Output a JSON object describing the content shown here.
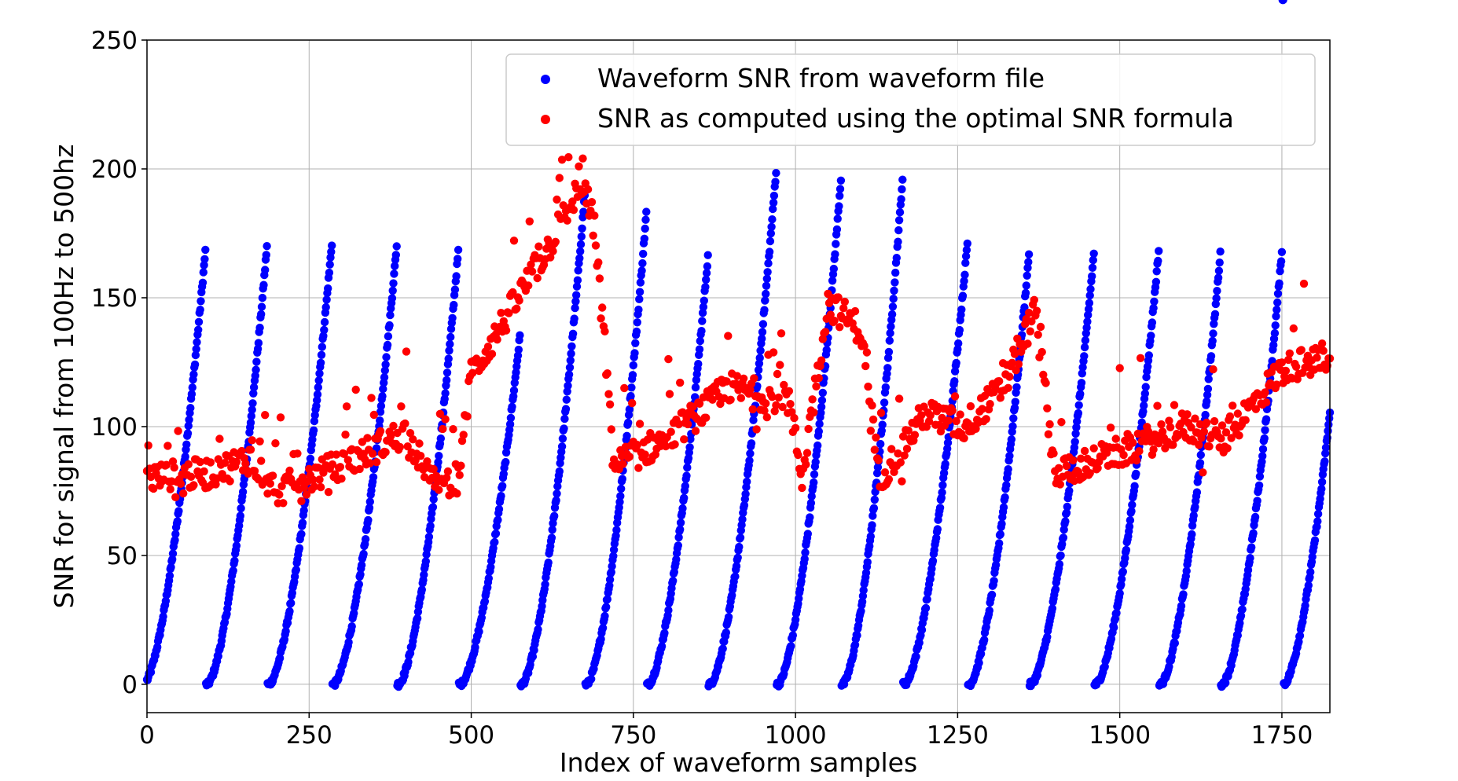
{
  "chart_data": {
    "type": "scatter",
    "xlabel": "Index of waveform samples",
    "ylabel": "SNR for signal from 100Hz to 500hz",
    "xlim": [
      0,
      1824
    ],
    "ylim": [
      -11,
      250
    ],
    "xticks": [
      0,
      250,
      500,
      750,
      1000,
      1250,
      1500,
      1750
    ],
    "yticks": [
      0,
      50,
      100,
      150,
      200,
      250
    ],
    "grid": true,
    "legend_position": "top-right",
    "series": [
      {
        "name": "Waveform SNR from waveform file",
        "color": "#0000ff",
        "pattern": "repeating scans of ~95 samples each; each scan sweeps 0 up to a peak of 160-200 then drops back",
        "peaks_x": [
          90,
          185,
          285,
          385,
          480,
          575,
          675,
          770,
          865,
          970,
          1070,
          1165,
          1265,
          1360,
          1460,
          1560,
          1655,
          1750
        ],
        "peaks_y": [
          168,
          170,
          171,
          170,
          168,
          135,
          190,
          183,
          166,
          199,
          196,
          196,
          171,
          167,
          167,
          168,
          167,
          168
        ],
        "y_range": [
          0,
          199
        ]
      },
      {
        "name": "SNR as computed using the optimal SNR formula",
        "color": "#ff0000",
        "trend_x": [
          0,
          100,
          160,
          200,
          300,
          400,
          440,
          480,
          500,
          560,
          620,
          670,
          690,
          720,
          800,
          900,
          990,
          1010,
          1050,
          1100,
          1130,
          1200,
          1260,
          1320,
          1370,
          1400,
          1500,
          1600,
          1660,
          1750,
          1824
        ],
        "trend_y": [
          80,
          82,
          88,
          75,
          85,
          98,
          78,
          80,
          120,
          145,
          170,
          195,
          178,
          85,
          95,
          115,
          110,
          80,
          148,
          138,
          80,
          105,
          100,
          115,
          145,
          82,
          90,
          100,
          95,
          122,
          128
        ],
        "y_range": [
          70,
          206
        ]
      }
    ]
  }
}
